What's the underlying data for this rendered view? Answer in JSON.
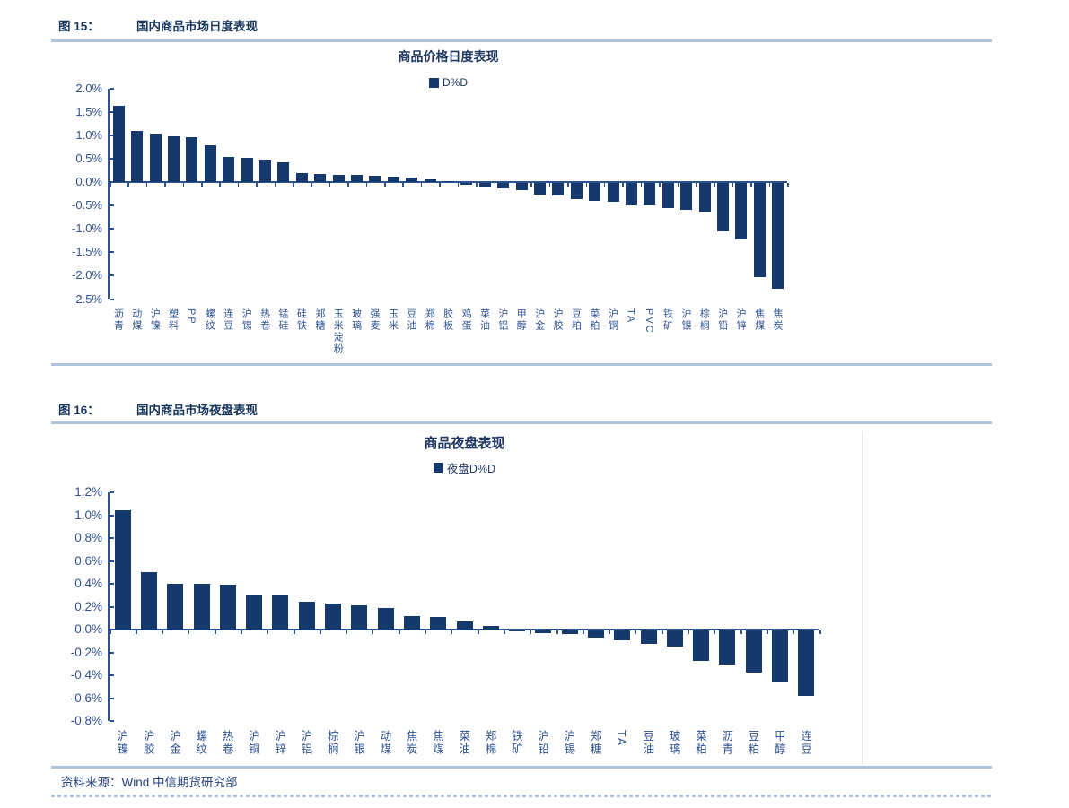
{
  "page": {
    "source_note": "资料来源：Wind 中信期货研究部"
  },
  "figure15": {
    "tag": "图 15：",
    "caption": "国内商品市场日度表现"
  },
  "figure16": {
    "tag": "图 16：",
    "caption": "国内商品市场夜盘表现"
  },
  "colors": {
    "bar": "#16396d",
    "divider": "#aec3de",
    "heading_text": "#17365d",
    "axis_text": "#2e5191",
    "title_text": "#1f3864"
  },
  "chart_data": [
    {
      "type": "bar",
      "title": "商品价格日度表现",
      "legend": "D%D",
      "legend_position": "top",
      "ylabel": "",
      "xlabel": "",
      "grid": false,
      "ylim": [
        -2.5,
        2.0
      ],
      "ytick_step": 0.5,
      "yticks": [
        "2.0%",
        "1.5%",
        "1.0%",
        "0.5%",
        "0.0%",
        "-0.5%",
        "-1.0%",
        "-1.5%",
        "-2.0%",
        "-2.5%"
      ],
      "categories": [
        "沥青",
        "动煤",
        "沪镍",
        "塑料",
        "PP",
        "螺纹",
        "连豆",
        "沪锡",
        "热卷",
        "锰硅",
        "硅铁",
        "郑糖",
        "玉米淀粉",
        "玻璃",
        "强麦",
        "玉米",
        "豆油",
        "郑棉",
        "胶板",
        "鸡蛋",
        "菜油",
        "沪铝",
        "甲醇",
        "沪金",
        "沪胶",
        "豆粕",
        "菜粕",
        "沪铜",
        "TA",
        "PVC",
        "铁矿",
        "沪银",
        "棕榈",
        "沪铅",
        "沪锌",
        "焦煤",
        "焦炭"
      ],
      "values": [
        1.63,
        1.1,
        1.04,
        0.97,
        0.96,
        0.78,
        0.53,
        0.52,
        0.48,
        0.42,
        0.2,
        0.17,
        0.15,
        0.15,
        0.13,
        0.11,
        0.09,
        0.05,
        0.02,
        -0.03,
        -0.08,
        -0.12,
        -0.15,
        -0.24,
        -0.27,
        -0.35,
        -0.38,
        -0.41,
        -0.48,
        -0.48,
        -0.53,
        -0.57,
        -0.61,
        -1.04,
        -1.2,
        -2.02,
        -2.27
      ]
    },
    {
      "type": "bar",
      "title": "商品夜盘表现",
      "legend": "夜盘D%D",
      "legend_position": "top",
      "ylabel": "",
      "xlabel": "",
      "grid": false,
      "ylim": [
        -0.8,
        1.2
      ],
      "ytick_step": 0.2,
      "yticks": [
        "1.2%",
        "1.0%",
        "0.8%",
        "0.6%",
        "0.4%",
        "0.2%",
        "0.0%",
        "-0.2%",
        "-0.4%",
        "-0.6%",
        "-0.8%"
      ],
      "categories": [
        "沪镍",
        "沪胶",
        "沪金",
        "螺纹",
        "热卷",
        "沪铜",
        "沪锌",
        "沪铝",
        "棕榈",
        "沪银",
        "动煤",
        "焦炭",
        "焦煤",
        "菜油",
        "郑棉",
        "铁矿",
        "沪铅",
        "沪锡",
        "郑糖",
        "TA",
        "豆油",
        "玻璃",
        "菜粕",
        "沥青",
        "豆粕",
        "甲醇",
        "连豆"
      ],
      "values": [
        1.04,
        0.5,
        0.4,
        0.4,
        0.39,
        0.3,
        0.3,
        0.24,
        0.23,
        0.21,
        0.19,
        0.12,
        0.11,
        0.07,
        0.03,
        -0.01,
        -0.02,
        -0.03,
        -0.06,
        -0.09,
        -0.12,
        -0.14,
        -0.27,
        -0.3,
        -0.37,
        -0.45,
        -0.57
      ]
    }
  ]
}
